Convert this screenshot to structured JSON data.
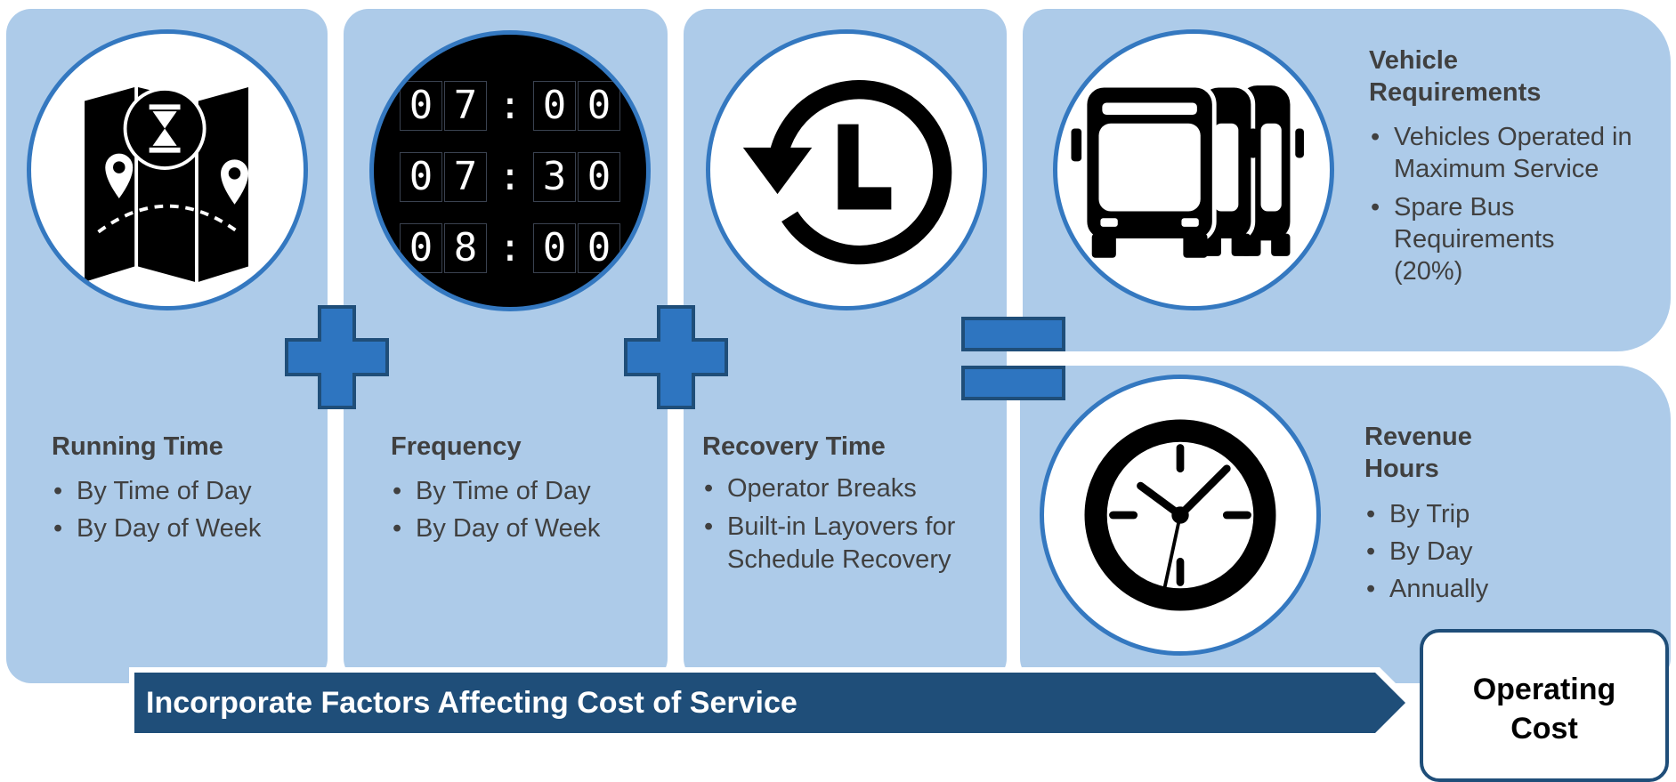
{
  "colors": {
    "panel": "#adcbe9",
    "circle_border": "#3478c0",
    "operator_fill": "#2e75c0",
    "navy": "#1f4e79",
    "text": "#404040"
  },
  "factors": [
    {
      "title": "Running Time",
      "icon": "map-hourglass-icon",
      "bullets": [
        "By Time of Day",
        "By Day of Week"
      ]
    },
    {
      "title": "Frequency",
      "icon": "departure-times-icon",
      "times": [
        "07:00",
        "07:30",
        "08:00"
      ],
      "bullets": [
        "By Time of Day",
        "By Day of Week"
      ]
    },
    {
      "title": "Recovery Time",
      "icon": "clock-rewind-icon",
      "bullets": [
        "Operator Breaks",
        "Built-in Layovers for Schedule Recovery"
      ]
    }
  ],
  "operators": {
    "plus_icon": "plus-icon",
    "equals_icon": "equals-icon"
  },
  "results": [
    {
      "title": "Vehicle Requirements",
      "icon": "buses-icon",
      "bullets": [
        "Vehicles Operated in Maximum Service",
        "Spare Bus Requirements (20%)"
      ]
    },
    {
      "title": "Revenue Hours",
      "icon": "clock-icon",
      "bullets": [
        "By Trip",
        "By Day",
        "Annually"
      ]
    }
  ],
  "banner": {
    "text": "Incorporate Factors Affecting Cost of Service"
  },
  "outcome": {
    "text": "Operating Cost"
  }
}
